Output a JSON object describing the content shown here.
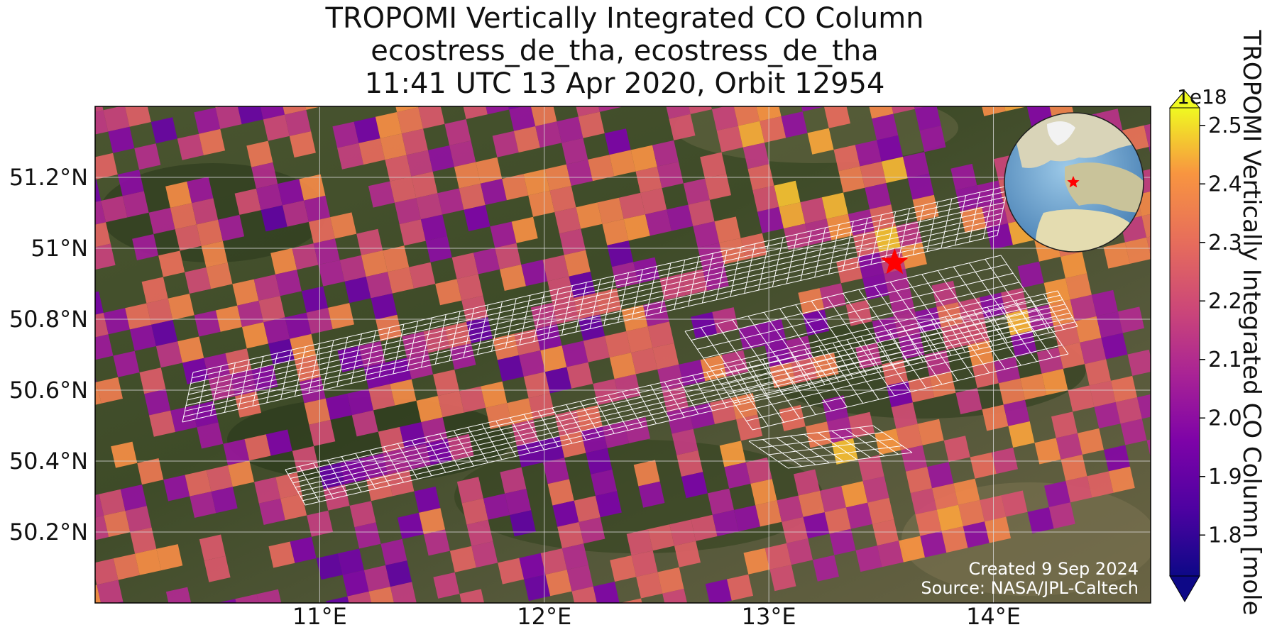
{
  "title_lines": [
    "TROPOMI Vertically Integrated CO Column",
    "ecostress_de_tha, ecostress_de_tha",
    "11:41 UTC 13 Apr 2020, Orbit 12954"
  ],
  "map": {
    "lon_range": [
      10.0,
      14.7
    ],
    "lat_range": [
      50.0,
      51.4
    ],
    "lat_ticks": [
      {
        "value": 50.2,
        "label": "50.2°N"
      },
      {
        "value": 50.4,
        "label": "50.4°N"
      },
      {
        "value": 50.6,
        "label": "50.6°N"
      },
      {
        "value": 50.8,
        "label": "50.8°N"
      },
      {
        "value": 51.0,
        "label": "51°N"
      },
      {
        "value": 51.2,
        "label": "51.2°N"
      }
    ],
    "lon_ticks": [
      {
        "value": 11,
        "label": "11°E"
      },
      {
        "value": 12,
        "label": "12°E"
      },
      {
        "value": 13,
        "label": "13°E"
      },
      {
        "value": 14,
        "label": "14°E"
      }
    ],
    "site_marker": {
      "lon": 13.56,
      "lat": 50.96,
      "symbol": "red-star"
    },
    "credit_lines": [
      "Created 9 Sep 2024",
      "Source: NASA/JPL-Caltech"
    ]
  },
  "colorbar": {
    "label": "TROPOMI Vertically Integrated CO Column [mole",
    "multiplier": "1e18",
    "range": [
      1.73,
      2.53
    ],
    "ticks": [
      "1.8",
      "1.9",
      "2.0",
      "2.1",
      "2.2",
      "2.3",
      "2.4",
      "2.5"
    ],
    "extend": "both",
    "colormap": "plasma"
  },
  "inset_globe": {
    "marker": "red-star",
    "marker_region": "Central Europe"
  },
  "colors": {
    "background_land": "#3f4a2a",
    "swath_lines": "#ffffff",
    "marker": "#ff0000",
    "grid": "#d8d8d8"
  }
}
